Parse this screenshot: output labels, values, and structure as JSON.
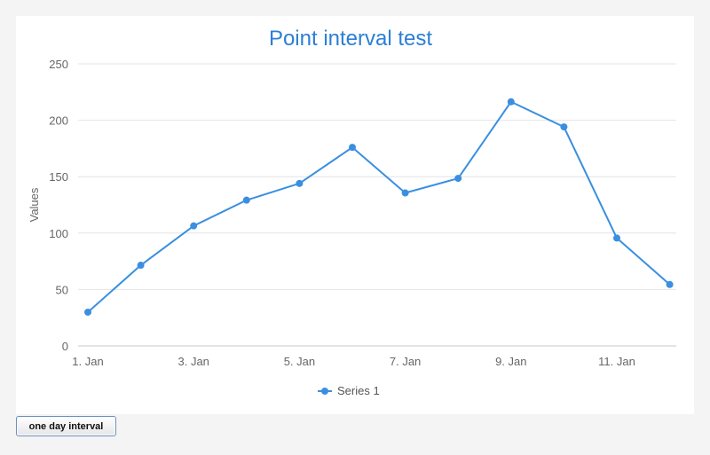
{
  "chart_data": {
    "type": "line",
    "title": "Point interval test",
    "xlabel": "",
    "ylabel": "Values",
    "x": [
      "1. Jan",
      "2. Jan",
      "3. Jan",
      "4. Jan",
      "5. Jan",
      "6. Jan",
      "7. Jan",
      "8. Jan",
      "9. Jan",
      "10. Jan",
      "11. Jan",
      "12. Jan"
    ],
    "x_tick_labels": [
      "1. Jan",
      "3. Jan",
      "5. Jan",
      "7. Jan",
      "9. Jan",
      "11. Jan"
    ],
    "y_tick_labels": [
      "0",
      "50",
      "100",
      "150",
      "200",
      "250"
    ],
    "ylim": [
      0,
      250
    ],
    "grid": true,
    "legend_position": "bottom-center",
    "series": [
      {
        "name": "Series 1",
        "color": "#3a8fe0",
        "values": [
          29.9,
          71.5,
          106.4,
          129.2,
          144.0,
          176.0,
          135.6,
          148.5,
          216.4,
          194.1,
          95.6,
          54.4
        ]
      }
    ]
  },
  "controls": {
    "interval_button_label": "one day interval"
  }
}
